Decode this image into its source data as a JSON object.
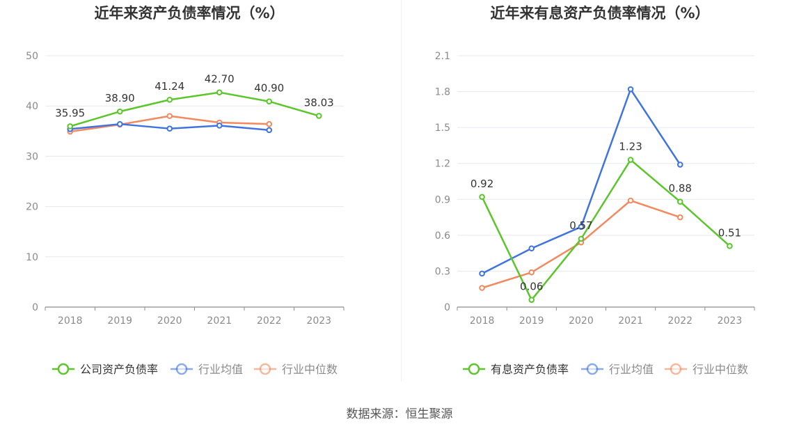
{
  "source": "数据来源：恒生聚源",
  "colors": {
    "company": "#5ac62a",
    "industry_avg": "#3e73e0",
    "industry_median": "#f2895f"
  },
  "chart_data": [
    {
      "type": "line",
      "title": "近年来资产负债率情况（%）",
      "categories": [
        "2018",
        "2019",
        "2020",
        "2021",
        "2022",
        "2023"
      ],
      "ylim": [
        0,
        50
      ],
      "yticks": [
        0,
        10,
        20,
        30,
        40,
        50
      ],
      "grid": true,
      "legend": "bottom",
      "series": [
        {
          "name": "公司资产负债率",
          "values": [
            35.95,
            38.9,
            41.24,
            42.7,
            40.9,
            38.03
          ],
          "labels": [
            "35.95",
            "38.90",
            "41.24",
            "42.70",
            "40.90",
            "38.03"
          ]
        },
        {
          "name": "行业均值",
          "values": [
            35.4,
            36.4,
            35.5,
            36.1,
            35.2,
            null
          ]
        },
        {
          "name": "行业中位数",
          "values": [
            34.9,
            36.3,
            38.0,
            36.7,
            36.4,
            null
          ]
        }
      ]
    },
    {
      "type": "line",
      "title": "近年来有息资产负债率情况（%）",
      "categories": [
        "2018",
        "2019",
        "2020",
        "2021",
        "2022",
        "2023"
      ],
      "ylim": [
        0,
        2.1
      ],
      "yticks": [
        "0",
        "0.3",
        "0.6",
        "0.9",
        "1.2",
        "1.5",
        "1.8",
        "2.1"
      ],
      "grid": true,
      "legend": "bottom",
      "series": [
        {
          "name": "有息资产负债率",
          "values": [
            0.92,
            0.06,
            0.57,
            1.23,
            0.88,
            0.51
          ],
          "labels": [
            "0.92",
            "0.06",
            "0.57",
            "1.23",
            "0.88",
            "0.51"
          ]
        },
        {
          "name": "行业均值",
          "values": [
            0.28,
            0.49,
            0.67,
            1.82,
            1.19,
            null
          ]
        },
        {
          "name": "行业中位数",
          "values": [
            0.16,
            0.29,
            0.54,
            0.89,
            0.75,
            null
          ]
        }
      ]
    }
  ]
}
